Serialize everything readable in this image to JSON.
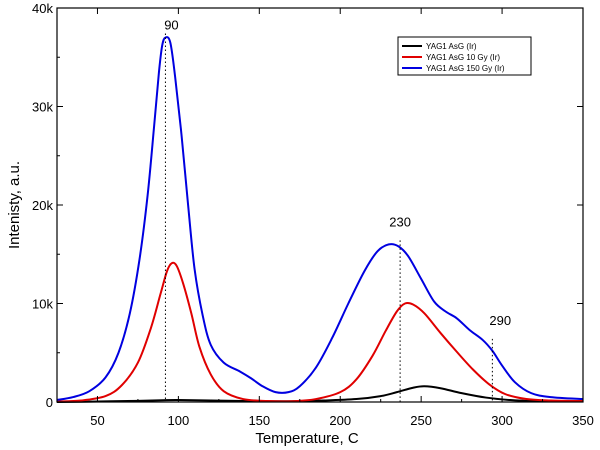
{
  "chart_data": {
    "type": "line",
    "xlabel": "Temperature, C",
    "ylabel": "Intenisty, a.u.",
    "xlim": [
      25,
      350
    ],
    "ylim": [
      0,
      40000
    ],
    "xticks": [
      50,
      100,
      150,
      200,
      250,
      300,
      350
    ],
    "xtick_labels": [
      "50",
      "100",
      "150",
      "200",
      "250",
      "300",
      "350"
    ],
    "yticks": [
      0,
      10000,
      20000,
      30000,
      40000
    ],
    "ytick_labels": [
      "0",
      "10k",
      "20k",
      "30k",
      "40k"
    ],
    "legend_position": "top-right",
    "series": [
      {
        "name": "YAG1 AsG (Ir)",
        "color": "#000000",
        "points": [
          [
            25,
            0
          ],
          [
            50,
            50
          ],
          [
            75,
            120
          ],
          [
            90,
            180
          ],
          [
            100,
            200
          ],
          [
            120,
            150
          ],
          [
            150,
            80
          ],
          [
            170,
            80
          ],
          [
            190,
            150
          ],
          [
            210,
            300
          ],
          [
            225,
            600
          ],
          [
            235,
            1000
          ],
          [
            245,
            1450
          ],
          [
            252,
            1600
          ],
          [
            262,
            1400
          ],
          [
            275,
            900
          ],
          [
            290,
            450
          ],
          [
            305,
            200
          ],
          [
            320,
            100
          ],
          [
            350,
            60
          ]
        ]
      },
      {
        "name": "YAG1 AsG 10 Gy (Ir)",
        "color": "#e00000",
        "points": [
          [
            25,
            50
          ],
          [
            40,
            150
          ],
          [
            55,
            600
          ],
          [
            65,
            1700
          ],
          [
            75,
            4000
          ],
          [
            83,
            7500
          ],
          [
            89,
            11000
          ],
          [
            93,
            13300
          ],
          [
            96,
            14100
          ],
          [
            99,
            13800
          ],
          [
            103,
            12000
          ],
          [
            108,
            9000
          ],
          [
            113,
            5600
          ],
          [
            120,
            2800
          ],
          [
            128,
            1100
          ],
          [
            140,
            300
          ],
          [
            155,
            100
          ],
          [
            170,
            80
          ],
          [
            185,
            300
          ],
          [
            200,
            1000
          ],
          [
            210,
            2300
          ],
          [
            220,
            4700
          ],
          [
            228,
            7200
          ],
          [
            235,
            9200
          ],
          [
            240,
            10000
          ],
          [
            245,
            9900
          ],
          [
            252,
            9000
          ],
          [
            262,
            7000
          ],
          [
            272,
            5100
          ],
          [
            282,
            3300
          ],
          [
            292,
            1800
          ],
          [
            302,
            800
          ],
          [
            315,
            300
          ],
          [
            330,
            150
          ],
          [
            350,
            100
          ]
        ]
      },
      {
        "name": "YAG1 AsG 150 Gy (Ir)",
        "color": "#0000e0",
        "points": [
          [
            25,
            200
          ],
          [
            35,
            500
          ],
          [
            45,
            1100
          ],
          [
            55,
            2500
          ],
          [
            63,
            5000
          ],
          [
            70,
            9000
          ],
          [
            76,
            14500
          ],
          [
            81,
            21000
          ],
          [
            85,
            28000
          ],
          [
            88,
            33500
          ],
          [
            90,
            36200
          ],
          [
            92,
            37000
          ],
          [
            95,
            36500
          ],
          [
            98,
            33000
          ],
          [
            102,
            27000
          ],
          [
            106,
            20000
          ],
          [
            110,
            13500
          ],
          [
            115,
            8800
          ],
          [
            120,
            5800
          ],
          [
            128,
            4000
          ],
          [
            138,
            3100
          ],
          [
            145,
            2400
          ],
          [
            152,
            1600
          ],
          [
            160,
            1000
          ],
          [
            168,
            1000
          ],
          [
            175,
            1600
          ],
          [
            185,
            3500
          ],
          [
            195,
            6500
          ],
          [
            205,
            10000
          ],
          [
            215,
            13300
          ],
          [
            223,
            15300
          ],
          [
            230,
            16000
          ],
          [
            236,
            15800
          ],
          [
            242,
            14800
          ],
          [
            250,
            12500
          ],
          [
            258,
            10200
          ],
          [
            265,
            9200
          ],
          [
            272,
            8500
          ],
          [
            280,
            7300
          ],
          [
            288,
            6300
          ],
          [
            294,
            5200
          ],
          [
            300,
            3700
          ],
          [
            308,
            2000
          ],
          [
            318,
            900
          ],
          [
            330,
            500
          ],
          [
            350,
            300
          ]
        ]
      }
    ],
    "annotations": [
      {
        "text": "90",
        "x": 92,
        "y_top": 37000
      },
      {
        "text": "230",
        "x": 237,
        "y_top": 16000
      },
      {
        "text": "290",
        "x": 294,
        "y_top": 6000
      }
    ],
    "legend": {
      "entries": [
        "YAG1 AsG  (Ir)",
        "YAG1 AsG 10 Gy (Ir)",
        "YAG1 AsG 150 Gy (Ir)"
      ]
    }
  }
}
